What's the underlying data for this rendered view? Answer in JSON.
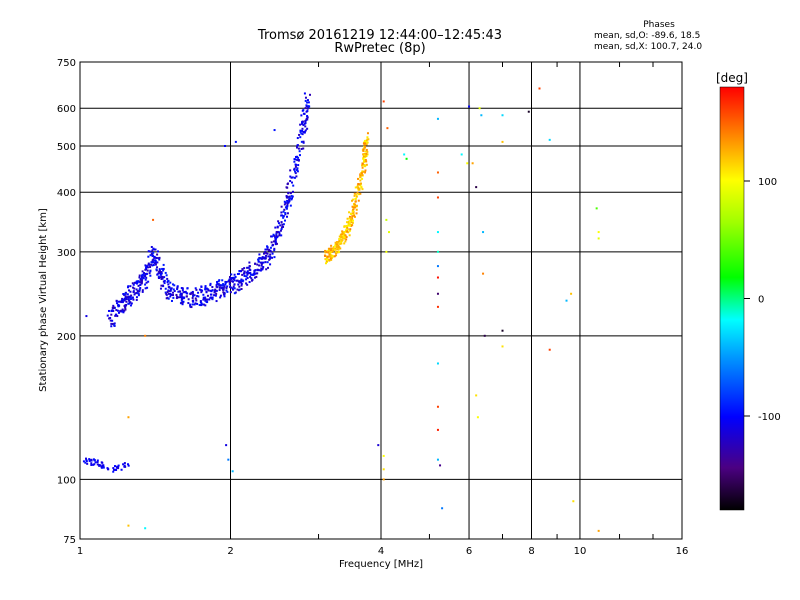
{
  "header": {
    "title_line1": "Tromsø 20161219 12:44:00–12:45:43",
    "title_line2": "RwPretec (8p)"
  },
  "phases_box": {
    "title": "Phases",
    "line_o": "mean, sd,O: -89.6, 18.5",
    "line_x": "mean, sd,X: 100.7, 24.0"
  },
  "colorbar": {
    "unit_label": "[deg]",
    "min": -180,
    "max": 180,
    "ticks": [
      {
        "value": 100,
        "label": "100"
      },
      {
        "value": 0,
        "label": "0"
      },
      {
        "value": -100,
        "label": "-100"
      }
    ]
  },
  "chart_data": {
    "type": "scatter",
    "xlabel": "Frequency [MHz]",
    "ylabel": "Stationary phase Virtual Height [km]",
    "x_scale": "log",
    "y_scale": "log",
    "xlim": [
      1,
      16
    ],
    "ylim": [
      75,
      750
    ],
    "grid": true,
    "x_ticks": [
      {
        "value": 1,
        "label": "1"
      },
      {
        "value": 2,
        "label": "2"
      },
      {
        "value": 4,
        "label": "4"
      },
      {
        "value": 6,
        "label": "6"
      },
      {
        "value": 8,
        "label": "8"
      },
      {
        "value": 10,
        "label": "10"
      },
      {
        "value": 16,
        "label": "16"
      }
    ],
    "y_ticks": [
      {
        "value": 75,
        "label": "75"
      },
      {
        "value": 100,
        "label": "100"
      },
      {
        "value": 200,
        "label": "200"
      },
      {
        "value": 300,
        "label": "300"
      },
      {
        "value": 400,
        "label": "400"
      },
      {
        "value": 500,
        "label": "500"
      },
      {
        "value": 600,
        "label": "600"
      },
      {
        "value": 750,
        "label": "750"
      }
    ],
    "o_trace": [
      [
        1.15,
        215
      ],
      [
        1.2,
        230
      ],
      [
        1.25,
        242
      ],
      [
        1.3,
        250
      ],
      [
        1.35,
        265
      ],
      [
        1.4,
        300
      ],
      [
        1.45,
        272
      ],
      [
        1.5,
        250
      ],
      [
        1.6,
        242
      ],
      [
        1.7,
        240
      ],
      [
        1.8,
        244
      ],
      [
        1.9,
        250
      ],
      [
        2.0,
        256
      ],
      [
        2.1,
        262
      ],
      [
        2.2,
        272
      ],
      [
        2.3,
        282
      ],
      [
        2.4,
        300
      ],
      [
        2.5,
        330
      ],
      [
        2.6,
        380
      ],
      [
        2.7,
        450
      ],
      [
        2.8,
        550
      ],
      [
        2.85,
        620
      ]
    ],
    "x_trace": [
      [
        3.1,
        290
      ],
      [
        3.2,
        298
      ],
      [
        3.3,
        310
      ],
      [
        3.4,
        330
      ],
      [
        3.5,
        355
      ],
      [
        3.6,
        400
      ],
      [
        3.7,
        460
      ],
      [
        3.75,
        520
      ]
    ],
    "low_echo_trace": [
      [
        1.02,
        110
      ],
      [
        1.08,
        108
      ],
      [
        1.15,
        105
      ],
      [
        1.25,
        107
      ]
    ],
    "scattered_points": [
      {
        "f": 1.03,
        "h": 220,
        "phase": -110
      },
      {
        "f": 1.4,
        "h": 350,
        "phase": 150
      },
      {
        "f": 1.25,
        "h": 135,
        "phase": 130
      },
      {
        "f": 1.25,
        "h": 80,
        "phase": 120
      },
      {
        "f": 1.35,
        "h": 79,
        "phase": -20
      },
      {
        "f": 1.35,
        "h": 200,
        "phase": 140
      },
      {
        "f": 1.95,
        "h": 500,
        "phase": -100
      },
      {
        "f": 2.05,
        "h": 510,
        "phase": -95
      },
      {
        "f": 1.98,
        "h": 110,
        "phase": -60
      },
      {
        "f": 2.02,
        "h": 104,
        "phase": -40
      },
      {
        "f": 1.96,
        "h": 118,
        "phase": -110
      },
      {
        "f": 2.45,
        "h": 540,
        "phase": -95
      },
      {
        "f": 3.95,
        "h": 118,
        "phase": -115
      },
      {
        "f": 4.05,
        "h": 620,
        "phase": 160
      },
      {
        "f": 4.12,
        "h": 545,
        "phase": 150
      },
      {
        "f": 4.1,
        "h": 350,
        "phase": 80
      },
      {
        "f": 4.15,
        "h": 330,
        "phase": 90
      },
      {
        "f": 4.1,
        "h": 300,
        "phase": 95
      },
      {
        "f": 4.05,
        "h": 112,
        "phase": 100
      },
      {
        "f": 4.05,
        "h": 105,
        "phase": 110
      },
      {
        "f": 4.05,
        "h": 100,
        "phase": 130
      },
      {
        "f": 4.45,
        "h": 480,
        "phase": -20
      },
      {
        "f": 4.5,
        "h": 470,
        "phase": 20
      },
      {
        "f": 5.2,
        "h": 570,
        "phase": -40
      },
      {
        "f": 5.2,
        "h": 440,
        "phase": 150
      },
      {
        "f": 5.2,
        "h": 390,
        "phase": 160
      },
      {
        "f": 5.2,
        "h": 330,
        "phase": -20
      },
      {
        "f": 5.2,
        "h": 300,
        "phase": -10
      },
      {
        "f": 5.2,
        "h": 280,
        "phase": -60
      },
      {
        "f": 5.2,
        "h": 265,
        "phase": 175
      },
      {
        "f": 5.2,
        "h": 245,
        "phase": -150
      },
      {
        "f": 5.2,
        "h": 230,
        "phase": 165
      },
      {
        "f": 5.2,
        "h": 175,
        "phase": -30
      },
      {
        "f": 5.2,
        "h": 142,
        "phase": 160
      },
      {
        "f": 5.2,
        "h": 127,
        "phase": 170
      },
      {
        "f": 5.2,
        "h": 110,
        "phase": -40
      },
      {
        "f": 5.3,
        "h": 87,
        "phase": -60
      },
      {
        "f": 5.25,
        "h": 107,
        "phase": -140
      },
      {
        "f": 5.8,
        "h": 480,
        "phase": -20
      },
      {
        "f": 5.95,
        "h": 460,
        "phase": 100
      },
      {
        "f": 6.0,
        "h": 605,
        "phase": -100
      },
      {
        "f": 6.1,
        "h": 460,
        "phase": 130
      },
      {
        "f": 6.2,
        "h": 410,
        "phase": -160
      },
      {
        "f": 6.2,
        "h": 150,
        "phase": 110
      },
      {
        "f": 6.25,
        "h": 135,
        "phase": 100
      },
      {
        "f": 6.3,
        "h": 600,
        "phase": 90
      },
      {
        "f": 6.35,
        "h": 580,
        "phase": -40
      },
      {
        "f": 6.4,
        "h": 330,
        "phase": -40
      },
      {
        "f": 6.4,
        "h": 270,
        "phase": 140
      },
      {
        "f": 6.45,
        "h": 200,
        "phase": -160
      },
      {
        "f": 7.0,
        "h": 580,
        "phase": -30
      },
      {
        "f": 7.0,
        "h": 510,
        "phase": 120
      },
      {
        "f": 7.0,
        "h": 205,
        "phase": -170
      },
      {
        "f": 7.0,
        "h": 190,
        "phase": 110
      },
      {
        "f": 7.9,
        "h": 590,
        "phase": -170
      },
      {
        "f": 8.3,
        "h": 660,
        "phase": 160
      },
      {
        "f": 8.7,
        "h": 515,
        "phase": -30
      },
      {
        "f": 8.7,
        "h": 187,
        "phase": 160
      },
      {
        "f": 9.4,
        "h": 237,
        "phase": -40
      },
      {
        "f": 9.6,
        "h": 245,
        "phase": 120
      },
      {
        "f": 9.7,
        "h": 90,
        "phase": 110
      },
      {
        "f": 10.8,
        "h": 370,
        "phase": 40
      },
      {
        "f": 10.9,
        "h": 330,
        "phase": 100
      },
      {
        "f": 10.9,
        "h": 320,
        "phase": 90
      },
      {
        "f": 10.9,
        "h": 78,
        "phase": 130
      }
    ]
  }
}
